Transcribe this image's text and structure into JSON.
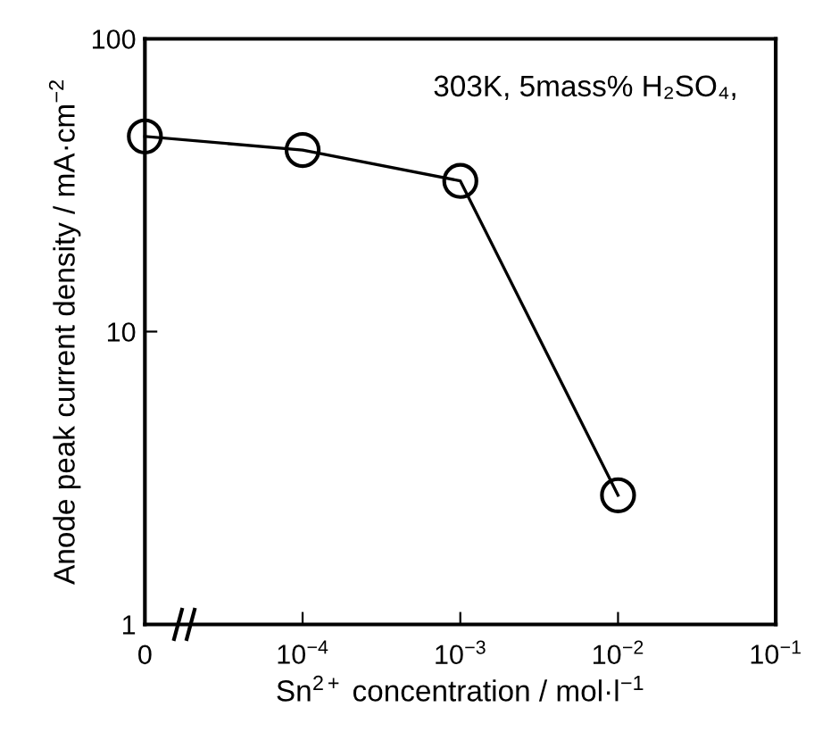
{
  "chart_data": {
    "type": "line",
    "xlabel": "Sn$^{2+}$ concentration / mol·l$^{−1}$",
    "ylabel": "Anode peak current density / mA·cm$^{−2}$",
    "annotations": [
      "303K, 5mass% H₂SO₄,"
    ],
    "categories": [
      "0",
      "10$^{−4}$",
      "10$^{−3}$",
      "10$^{−2}$",
      "10$^{−1}$"
    ],
    "series": [
      {
        "color": "#000000",
        "values": [
          46.4,
          41.7,
          32.7,
          2.76,
          null
        ]
      }
    ],
    "log": "y",
    "ylim": [
      1,
      100
    ],
    "yticks": [
      1,
      10,
      100
    ],
    "marker": "circle",
    "line_style": "solid",
    "grid": false,
    "legend": false
  }
}
